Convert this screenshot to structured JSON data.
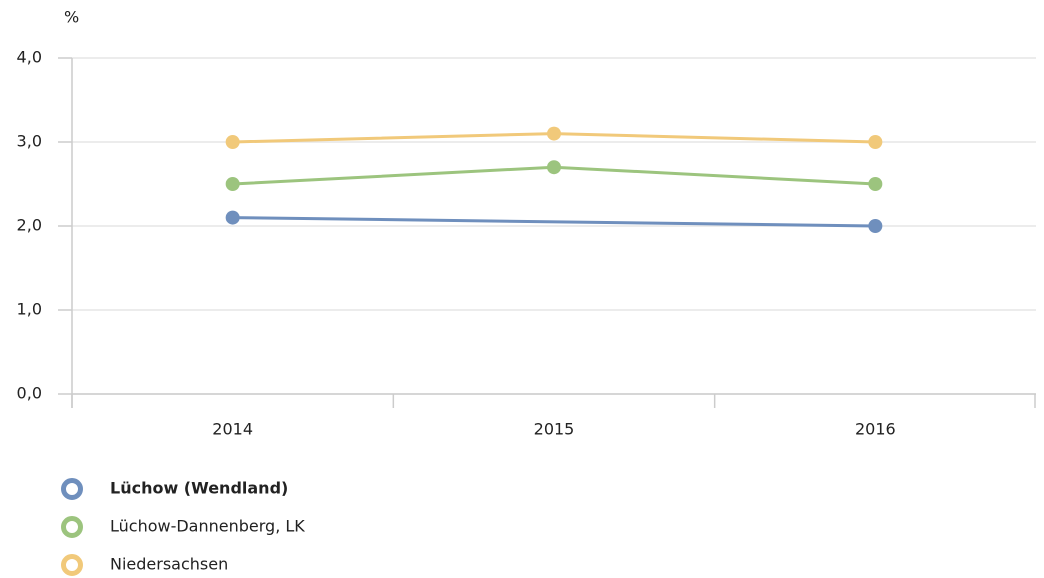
{
  "chart_data": {
    "type": "line",
    "y_unit": "%",
    "categories": [
      "2014",
      "2015",
      "2016"
    ],
    "series": [
      {
        "name": "Lüchow (Wendland)",
        "color": "#6f8fbd",
        "values": [
          2.1,
          null,
          2.0
        ]
      },
      {
        "name": "Lüchow-Dannenberg, LK",
        "color": "#9cc47e",
        "values": [
          2.5,
          2.7,
          2.5
        ]
      },
      {
        "name": "Niedersachsen",
        "color": "#f1c97a",
        "values": [
          3.0,
          3.1,
          3.0
        ]
      }
    ],
    "ylim": [
      0,
      4
    ],
    "yticks": [
      {
        "value": 0,
        "label": "0,0"
      },
      {
        "value": 1,
        "label": "1,0"
      },
      {
        "value": 2,
        "label": "2,0"
      },
      {
        "value": 3,
        "label": "3,0"
      },
      {
        "value": 4,
        "label": "4,0"
      }
    ],
    "grid": true,
    "connect_gaps": true,
    "legend": "bottom-left"
  }
}
